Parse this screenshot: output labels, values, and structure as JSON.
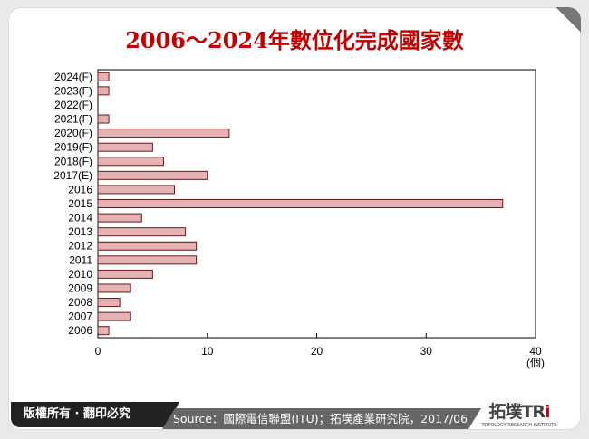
{
  "chart_data": {
    "type": "bar",
    "orientation": "horizontal",
    "title": "2006～2024年數位化完成國家數",
    "categories": [
      "2024(F)",
      "2023(F)",
      "2022(F)",
      "2021(F)",
      "2020(F)",
      "2019(F)",
      "2018(F)",
      "2017(E)",
      "2016",
      "2015",
      "2014",
      "2013",
      "2012",
      "2011",
      "2010",
      "2009",
      "2008",
      "2007",
      "2006"
    ],
    "values": [
      1,
      1,
      0,
      1,
      12,
      5,
      6,
      10,
      7,
      37,
      4,
      8,
      9,
      9,
      5,
      3,
      2,
      3,
      1
    ],
    "xlim": [
      0,
      40
    ],
    "xticks": [
      0,
      10,
      20,
      30,
      40
    ],
    "xlabel": "(個)",
    "grid": false,
    "bar_color": "#e6b3b5",
    "bar_edge": "#6b1a1a"
  },
  "footer": {
    "copyright": "版權所有 · 翻印必究",
    "source": "Source：國際電信聯盟(ITU)；拓墣產業研究院，2017/06",
    "logo_text": "拓墣TRi",
    "logo_sub": "TOPOLOGY RESEARCH INSTITUTE"
  }
}
